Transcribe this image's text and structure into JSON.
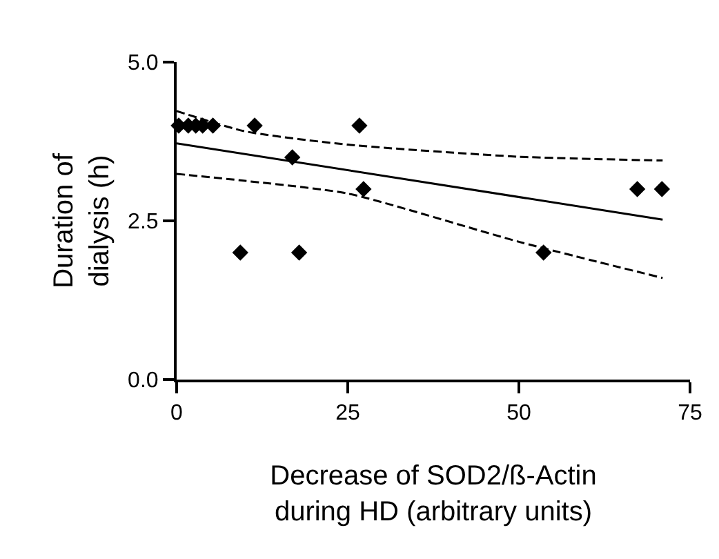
{
  "chart_data": {
    "type": "scatter",
    "xlabel": "Decrease of SOD2/ß-Actin\nduring HD (arbitrary units)",
    "ylabel": "Duration of\ndialysis (h)",
    "xlim": [
      0,
      75
    ],
    "xticks": [
      0,
      25,
      50,
      75
    ],
    "ylim": [
      0,
      5
    ],
    "yticks": [
      {
        "value": 0,
        "label": "0.0"
      },
      {
        "value": 2.5,
        "label": "2.5"
      },
      {
        "value": 5,
        "label": "5.0"
      }
    ],
    "series": [
      {
        "marker": "diamond",
        "color": "#000000",
        "x": [
          0.3,
          1.7,
          2.8,
          3.8,
          5.3,
          11.4,
          26.7,
          16.9,
          27.3,
          9.3,
          17.9,
          53.6,
          67.3,
          70.9
        ],
        "values": [
          4,
          4,
          4,
          4,
          4,
          4,
          4,
          3.5,
          3,
          2,
          2,
          2,
          3,
          3
        ]
      },
      {
        "type": "line",
        "line_style": "solid",
        "color": "#000000",
        "x": [
          0,
          71
        ],
        "values": [
          3.72,
          2.52
        ]
      },
      {
        "type": "line",
        "line_style": "dashed",
        "color": "#000000",
        "x": [
          0,
          10,
          25,
          50,
          71
        ],
        "values": [
          4.23,
          3.91,
          3.7,
          3.51,
          3.45
        ]
      },
      {
        "type": "line",
        "line_style": "dashed",
        "color": "#000000",
        "x": [
          0,
          10,
          25,
          50,
          71
        ],
        "values": [
          3.24,
          3.13,
          2.93,
          2.17,
          1.6
        ]
      }
    ]
  }
}
